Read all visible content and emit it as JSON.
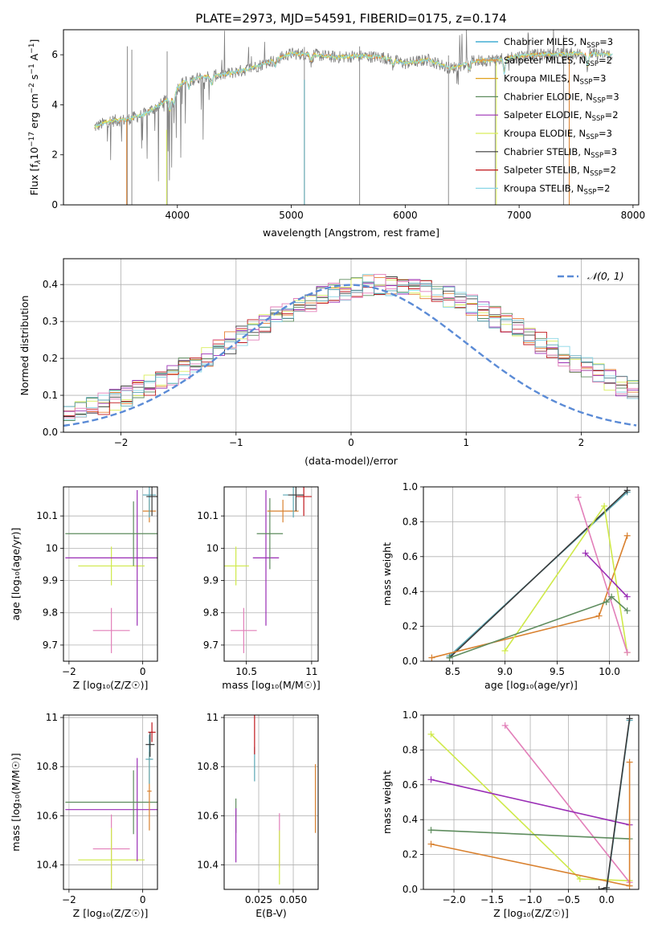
{
  "figure_title": "PLATE=2973, MJD=54591, FIBERID=0175, z=0.174",
  "colors": {
    "Chabrier MILES": "#1f9ec9",
    "Salpeter MILES": "#e77f31",
    "Kroupa MILES": "#e0a21e",
    "Chabrier ELODIE": "#5e8c5e",
    "Salpeter ELODIE": "#9b2fb5",
    "Kroupa ELODIE": "#d9ee5a",
    "Chabrier STELIB": "#3a3a3a",
    "Salpeter STELIB": "#c0171c",
    "Kroupa STELIB": "#88d6e6",
    "data": "#7f7f7f",
    "gaussian": "#5b8bd6",
    "pink": "#e27fb9",
    "lime": "#cfe94a",
    "purple": "#9a2db5",
    "green": "#5e8c5e",
    "orange": "#d9812f",
    "teal": "#59a7b4"
  },
  "chart_data": [
    {
      "id": "spectrum",
      "type": "line",
      "title": "PLATE=2973, MJD=54591, FIBERID=0175, z=0.174",
      "xlabel": "wavelength [Angstrom, rest frame]",
      "ylabel_parts": [
        "Flux [f",
        "λ",
        "10",
        "−17",
        " erg cm",
        "−2",
        " s",
        "−1",
        " A",
        "−1",
        "]"
      ],
      "xlim": [
        3000,
        8050
      ],
      "ylim": [
        0,
        7
      ],
      "xticks": [
        4000,
        5000,
        6000,
        7000,
        8000
      ],
      "yticks": [
        0,
        2,
        4,
        6
      ],
      "legend_position": "upper-right",
      "legend": [
        {
          "name": "Chabrier MILES",
          "nssp": "3"
        },
        {
          "name": "Salpeter MILES",
          "nssp": "2"
        },
        {
          "name": "Kroupa MILES",
          "nssp": "3"
        },
        {
          "name": "Chabrier ELODIE",
          "nssp": "3"
        },
        {
          "name": "Salpeter ELODIE",
          "nssp": "2"
        },
        {
          "name": "Kroupa ELODIE",
          "nssp": "3"
        },
        {
          "name": "Chabrier STELIB",
          "nssp": "3"
        },
        {
          "name": "Salpeter STELIB",
          "nssp": "2"
        },
        {
          "name": "Kroupa STELIB",
          "nssp": "2"
        }
      ],
      "nssp_label": "N",
      "nssp_sub": "SSP",
      "continuum": [
        [
          3270,
          3.1
        ],
        [
          3400,
          3.35
        ],
        [
          3550,
          3.4
        ],
        [
          3700,
          3.6
        ],
        [
          3850,
          4.0
        ],
        [
          3950,
          4.4
        ],
        [
          4050,
          4.9
        ],
        [
          4200,
          5.1
        ],
        [
          4400,
          5.2
        ],
        [
          4600,
          5.4
        ],
        [
          4800,
          5.7
        ],
        [
          5000,
          6.05
        ],
        [
          5200,
          6.0
        ],
        [
          5400,
          5.9
        ],
        [
          5600,
          5.95
        ],
        [
          5800,
          5.9
        ],
        [
          6000,
          5.65
        ],
        [
          6200,
          5.8
        ],
        [
          6400,
          5.45
        ],
        [
          6600,
          5.75
        ],
        [
          6800,
          5.8
        ],
        [
          7000,
          5.95
        ],
        [
          7200,
          6.0
        ],
        [
          7500,
          6.05
        ],
        [
          7800,
          6.0
        ]
      ]
    },
    {
      "id": "residuals",
      "type": "histogram",
      "xlabel": "(data-model)/error",
      "ylabel": "Normed distribution",
      "xlim": [
        -2.5,
        2.5
      ],
      "ylim": [
        0,
        0.47
      ],
      "xticks": [
        -2,
        -1,
        0,
        1,
        2
      ],
      "yticks": [
        0.0,
        0.1,
        0.2,
        0.3,
        0.4
      ],
      "legend": "𝒩(0, 1)",
      "legend_position": "upper-right",
      "grid": true,
      "bin_width": 0.1
    },
    {
      "id": "age-vs-Z",
      "type": "errorbar",
      "xlabel": "Z [log₁₀(Z/Z☉)]",
      "ylabel": "age  [log₁₀(age/yr)]",
      "xlim": [
        -2.15,
        0.4
      ],
      "ylim": [
        9.65,
        10.19
      ],
      "xticks": [
        -2,
        0
      ],
      "yticks": [
        9.7,
        9.8,
        9.9,
        10.0,
        10.1
      ],
      "grid": true,
      "points": [
        {
          "series": "pink",
          "x": -0.85,
          "y": 9.745,
          "xerr": 0.5,
          "yerr": 0.07
        },
        {
          "series": "lime",
          "x": -0.85,
          "y": 9.945,
          "xerr": 0.9,
          "yerr": 0.06
        },
        {
          "series": "purple",
          "x": -0.15,
          "y": 9.97,
          "xerr": 1.95,
          "yerr": 0.21
        },
        {
          "series": "green",
          "x": -0.25,
          "y": 10.045,
          "xerr": 1.85,
          "yerr": 0.1
        },
        {
          "series": "orange",
          "x": 0.18,
          "y": 10.115,
          "xerr": 0.18,
          "yerr": 0.035
        },
        {
          "series": "teal",
          "x": 0.18,
          "y": 10.165,
          "xerr": 0.18,
          "yerr": 0.07
        },
        {
          "series": "Chabrier STELIB",
          "x": 0.25,
          "y": 10.16,
          "xerr": 0.15,
          "yerr": 0.06
        }
      ]
    },
    {
      "id": "age-vs-mass",
      "type": "errorbar",
      "xlabel": "mass [log₁₀(M/M☉)]",
      "xlim": [
        10.33,
        11.05
      ],
      "ylim": [
        9.65,
        10.19
      ],
      "xticks": [
        10.5,
        11.0
      ],
      "yticks": [
        9.7,
        9.8,
        9.9,
        10.0,
        10.1
      ],
      "grid": true,
      "points": [
        {
          "series": "pink",
          "x": 10.48,
          "y": 9.745,
          "xerr": 0.1,
          "yerr": 0.07
        },
        {
          "series": "lime",
          "x": 10.42,
          "y": 9.945,
          "xerr": 0.1,
          "yerr": 0.06
        },
        {
          "series": "purple",
          "x": 10.65,
          "y": 9.97,
          "xerr": 0.1,
          "yerr": 0.21
        },
        {
          "series": "green",
          "x": 10.68,
          "y": 10.045,
          "xerr": 0.1,
          "yerr": 0.11
        },
        {
          "series": "orange",
          "x": 10.78,
          "y": 10.115,
          "xerr": 0.12,
          "yerr": 0.035
        },
        {
          "series": "teal",
          "x": 10.86,
          "y": 10.165,
          "xerr": 0.08,
          "yerr": 0.07
        },
        {
          "series": "Salpeter STELIB",
          "x": 10.94,
          "y": 10.16,
          "xerr": 0.06,
          "yerr": 0.06
        },
        {
          "series": "Chabrier STELIB",
          "x": 10.88,
          "y": 10.165,
          "xerr": 0.06,
          "yerr": 0.05
        }
      ]
    },
    {
      "id": "weight-vs-age",
      "type": "line",
      "xlabel": "age  [log₁₀(age/yr)]",
      "ylabel": "mass weight",
      "xlim": [
        8.22,
        10.28
      ],
      "ylim": [
        0,
        1.0
      ],
      "xticks": [
        8.5,
        9.0,
        9.5,
        10.0
      ],
      "yticks": [
        0.0,
        0.2,
        0.4,
        0.6,
        0.8,
        1.0
      ],
      "grid": true,
      "series": [
        {
          "name": "teal",
          "x": [
            8.47,
            10.17
          ],
          "y": [
            0.03,
            0.97
          ]
        },
        {
          "name": "Chabrier STELIB",
          "x": [
            8.47,
            10.17
          ],
          "y": [
            0.02,
            0.98
          ]
        },
        {
          "name": "orange",
          "x": [
            8.3,
            9.9,
            10.17
          ],
          "y": [
            0.02,
            0.26,
            0.72
          ]
        },
        {
          "name": "lime",
          "x": [
            9.0,
            9.95,
            10.17
          ],
          "y": [
            0.06,
            0.89,
            0.05
          ]
        },
        {
          "name": "pink",
          "x": [
            9.7,
            10.17
          ],
          "y": [
            0.94,
            0.05
          ]
        },
        {
          "name": "purple",
          "x": [
            9.77,
            10.17
          ],
          "y": [
            0.62,
            0.37
          ]
        },
        {
          "name": "green",
          "x": [
            8.47,
            9.97,
            10.02,
            10.17
          ],
          "y": [
            0.02,
            0.34,
            0.37,
            0.29
          ]
        }
      ]
    },
    {
      "id": "mass-vs-Z",
      "type": "errorbar",
      "xlabel": "Z [log₁₀(Z/Z☉)]",
      "ylabel": "mass [log₁₀(M/M☉)]",
      "xlim": [
        -2.15,
        0.4
      ],
      "ylim": [
        10.3,
        11.01
      ],
      "xticks": [
        -2,
        0
      ],
      "yticks": [
        10.4,
        10.6,
        10.8,
        11.0
      ],
      "grid": true,
      "points": [
        {
          "series": "pink",
          "x": -0.85,
          "y": 10.465,
          "xerr": 0.5,
          "yerr": 0.14
        },
        {
          "series": "lime",
          "x": -0.85,
          "y": 10.42,
          "xerr": 0.9,
          "yerr": 0.13
        },
        {
          "series": "purple",
          "x": -0.15,
          "y": 10.625,
          "xerr": 1.95,
          "yerr": 0.21
        },
        {
          "series": "green",
          "x": -0.25,
          "y": 10.655,
          "xerr": 1.85,
          "yerr": 0.13
        },
        {
          "series": "orange",
          "x": 0.18,
          "y": 10.7,
          "xerr": 0.06,
          "yerr": 0.16
        },
        {
          "series": "teal",
          "x": 0.18,
          "y": 10.83,
          "xerr": 0.1,
          "yerr": 0.1
        },
        {
          "series": "Salpeter STELIB",
          "x": 0.25,
          "y": 10.94,
          "xerr": 0.1,
          "yerr": 0.04
        },
        {
          "series": "Chabrier STELIB",
          "x": 0.2,
          "y": 10.89,
          "xerr": 0.12,
          "yerr": 0.05
        }
      ]
    },
    {
      "id": "mass-vs-ebv",
      "type": "errorbar",
      "xlabel": "E(B-V)",
      "xlim": [
        0.0,
        0.068
      ],
      "ylim": [
        10.3,
        11.01
      ],
      "xticks": [
        0.025,
        0.05
      ],
      "xticklabels": [
        "0.025",
        "0.050"
      ],
      "yticks": [
        10.4,
        10.6,
        10.8,
        11.0
      ],
      "grid": true,
      "points": [
        {
          "series": "green",
          "x": 0.0085,
          "y": 10.6,
          "yerr": 0.07
        },
        {
          "series": "purple",
          "x": 0.0085,
          "y": 10.52,
          "yerr": 0.11
        },
        {
          "series": "teal",
          "x": 0.022,
          "y": 10.81,
          "yerr": 0.07
        },
        {
          "series": "Salpeter STELIB",
          "x": 0.022,
          "y": 10.93,
          "yerr": 0.08
        },
        {
          "series": "pink",
          "x": 0.04,
          "y": 10.5,
          "yerr": 0.11
        },
        {
          "series": "lime",
          "x": 0.04,
          "y": 10.43,
          "yerr": 0.11
        },
        {
          "series": "orange",
          "x": 0.066,
          "y": 10.67,
          "yerr": 0.14
        }
      ]
    },
    {
      "id": "weight-vs-Z",
      "type": "line",
      "xlabel": "Z [log₁₀(Z/Z☉)]",
      "ylabel": "mass weight",
      "xlim": [
        -2.4,
        0.42
      ],
      "ylim": [
        0,
        1.0
      ],
      "xticks": [
        -2.0,
        -1.5,
        -1.0,
        -0.5,
        0.0
      ],
      "yticks": [
        0.0,
        0.2,
        0.4,
        0.6,
        0.8,
        1.0
      ],
      "grid": true,
      "series": [
        {
          "name": "lime",
          "x": [
            -2.3,
            -0.35,
            0.3
          ],
          "y": [
            0.89,
            0.06,
            0.05
          ]
        },
        {
          "name": "pink",
          "x": [
            -1.33,
            0.3
          ],
          "y": [
            0.94,
            0.04
          ]
        },
        {
          "name": "purple",
          "x": [
            -2.3,
            0.3
          ],
          "y": [
            0.63,
            0.37
          ]
        },
        {
          "name": "green",
          "x": [
            -2.3,
            0.3
          ],
          "y": [
            0.34,
            0.29
          ]
        },
        {
          "name": "orange",
          "x": [
            -2.3,
            0.3,
            0.3
          ],
          "y": [
            0.26,
            0.02,
            0.73
          ]
        },
        {
          "name": "teal",
          "x": [
            0.0,
            0.3
          ],
          "y": [
            0.0,
            0.97
          ]
        },
        {
          "name": "Chabrier STELIB",
          "x": [
            -0.1,
            0.0,
            0.3
          ],
          "y": [
            0.0,
            0.01,
            0.98
          ]
        }
      ]
    }
  ]
}
